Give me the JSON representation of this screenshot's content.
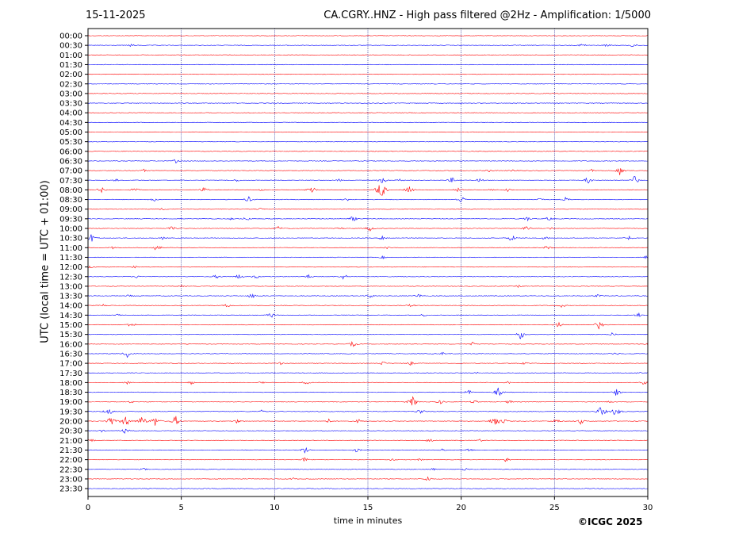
{
  "header": {
    "date": "15-11-2025",
    "title": "CA.CGRY..HNZ - High pass filtered @2Hz - Amplification: 1/5000"
  },
  "footer": {
    "copyright": "©ICGC 2025"
  },
  "chart_data": {
    "type": "line",
    "subtype": "helicorder",
    "xlabel": "time in minutes",
    "ylabel": "UTC (local time = UTC + 01:00)",
    "xlim": [
      0,
      30
    ],
    "xticks": [
      0,
      5,
      10,
      15,
      20,
      25,
      30
    ],
    "grid_x": [
      5,
      10,
      15,
      20,
      25
    ],
    "trace_colors": [
      "#ff0000",
      "#0000ff"
    ],
    "rows": [
      {
        "label": "00:00",
        "events": []
      },
      {
        "label": "00:30",
        "events": [
          [
            2.3,
            2
          ],
          [
            26.5,
            3
          ],
          [
            27.8,
            2
          ],
          [
            29.2,
            3
          ]
        ]
      },
      {
        "label": "01:00",
        "events": []
      },
      {
        "label": "01:30",
        "events": []
      },
      {
        "label": "02:00",
        "events": []
      },
      {
        "label": "02:30",
        "events": []
      },
      {
        "label": "03:00",
        "events": []
      },
      {
        "label": "03:30",
        "events": []
      },
      {
        "label": "04:00",
        "events": []
      },
      {
        "label": "04:30",
        "events": []
      },
      {
        "label": "05:00",
        "events": []
      },
      {
        "label": "05:30",
        "events": []
      },
      {
        "label": "06:00",
        "events": []
      },
      {
        "label": "06:30",
        "events": [
          [
            4.7,
            3
          ]
        ]
      },
      {
        "label": "07:00",
        "events": [
          [
            3.0,
            2
          ],
          [
            21.5,
            2
          ],
          [
            22.8,
            2
          ],
          [
            27.0,
            2
          ],
          [
            28.5,
            6
          ]
        ]
      },
      {
        "label": "07:30",
        "events": [
          [
            1.5,
            2
          ],
          [
            8.0,
            2
          ],
          [
            13.5,
            2
          ],
          [
            15.8,
            5
          ],
          [
            16.7,
            3
          ],
          [
            19.5,
            4
          ],
          [
            21.0,
            3
          ],
          [
            26.8,
            5
          ],
          [
            29.3,
            6
          ]
        ]
      },
      {
        "label": "08:00",
        "events": [
          [
            0.7,
            4
          ],
          [
            2.5,
            3
          ],
          [
            6.2,
            4
          ],
          [
            9.3,
            2
          ],
          [
            12.0,
            7
          ],
          [
            15.7,
            14
          ],
          [
            17.2,
            6
          ],
          [
            19.8,
            3
          ],
          [
            21.6,
            2
          ],
          [
            22.5,
            3
          ]
        ]
      },
      {
        "label": "08:30",
        "events": [
          [
            3.5,
            3
          ],
          [
            8.6,
            4
          ],
          [
            13.9,
            2
          ],
          [
            20.0,
            5
          ],
          [
            24.2,
            3
          ],
          [
            25.6,
            3
          ]
        ]
      },
      {
        "label": "09:00",
        "events": [
          [
            4.0,
            2
          ],
          [
            9.2,
            2
          ]
        ]
      },
      {
        "label": "09:30",
        "events": [
          [
            7.7,
            2
          ],
          [
            8.5,
            3
          ],
          [
            14.2,
            4
          ],
          [
            23.5,
            4
          ],
          [
            24.7,
            3
          ]
        ]
      },
      {
        "label": "10:00",
        "events": [
          [
            4.5,
            3
          ],
          [
            10.2,
            3
          ],
          [
            13.5,
            2
          ],
          [
            15.1,
            4
          ],
          [
            23.5,
            4
          ],
          [
            24.8,
            2
          ]
        ]
      },
      {
        "label": "10:30",
        "events": [
          [
            0.2,
            6
          ],
          [
            4.0,
            2
          ],
          [
            15.8,
            4
          ],
          [
            22.7,
            5
          ],
          [
            24.5,
            3
          ],
          [
            29.0,
            3
          ]
        ]
      },
      {
        "label": "11:00",
        "events": [
          [
            1.3,
            2
          ],
          [
            3.7,
            5
          ],
          [
            16.0,
            2
          ],
          [
            24.6,
            3
          ]
        ]
      },
      {
        "label": "11:30",
        "events": [
          [
            15.8,
            2
          ],
          [
            29.9,
            2
          ]
        ]
      },
      {
        "label": "12:00",
        "events": [
          [
            0.1,
            3
          ],
          [
            2.5,
            2
          ]
        ]
      },
      {
        "label": "12:30",
        "events": [
          [
            2.6,
            2
          ],
          [
            6.9,
            3
          ],
          [
            8.1,
            4
          ],
          [
            9.0,
            3
          ],
          [
            11.8,
            3
          ],
          [
            13.7,
            4
          ]
        ]
      },
      {
        "label": "13:00",
        "events": [
          [
            5.0,
            2
          ],
          [
            23.1,
            2
          ]
        ]
      },
      {
        "label": "13:30",
        "events": [
          [
            2.2,
            2
          ],
          [
            8.8,
            4
          ],
          [
            15.1,
            3
          ],
          [
            17.7,
            3
          ],
          [
            27.3,
            2
          ]
        ]
      },
      {
        "label": "14:00",
        "events": [
          [
            0.8,
            2
          ],
          [
            7.5,
            3
          ],
          [
            17.3,
            3
          ],
          [
            25.4,
            3
          ]
        ]
      },
      {
        "label": "14:30",
        "events": [
          [
            1.6,
            2
          ],
          [
            9.8,
            4
          ],
          [
            18.0,
            2
          ],
          [
            29.5,
            3
          ]
        ]
      },
      {
        "label": "15:00",
        "events": [
          [
            2.3,
            4
          ],
          [
            25.2,
            4
          ],
          [
            27.4,
            6
          ]
        ]
      },
      {
        "label": "15:30",
        "events": [
          [
            23.2,
            7
          ],
          [
            28.1,
            3
          ]
        ]
      },
      {
        "label": "16:00",
        "events": [
          [
            14.2,
            4
          ],
          [
            20.6,
            3
          ],
          [
            30.0,
            2
          ]
        ]
      },
      {
        "label": "16:30",
        "events": [
          [
            2.1,
            5
          ],
          [
            19.0,
            2
          ],
          [
            28.3,
            2
          ]
        ]
      },
      {
        "label": "17:00",
        "events": [
          [
            10.3,
            2
          ],
          [
            15.8,
            3
          ],
          [
            17.3,
            3
          ],
          [
            23.4,
            2
          ]
        ]
      },
      {
        "label": "17:30",
        "events": [
          [
            20.8,
            2
          ],
          [
            29.5,
            2
          ]
        ]
      },
      {
        "label": "18:00",
        "events": [
          [
            2.1,
            2
          ],
          [
            5.5,
            3
          ],
          [
            9.3,
            2
          ],
          [
            11.7,
            3
          ],
          [
            22.5,
            2
          ],
          [
            29.8,
            3
          ]
        ]
      },
      {
        "label": "18:30",
        "events": [
          [
            20.4,
            3
          ],
          [
            22.0,
            6
          ],
          [
            28.3,
            5
          ]
        ]
      },
      {
        "label": "19:00",
        "events": [
          [
            2.3,
            2
          ],
          [
            17.4,
            8
          ],
          [
            18.9,
            3
          ],
          [
            20.7,
            3
          ],
          [
            22.6,
            3
          ],
          [
            28.0,
            2
          ]
        ]
      },
      {
        "label": "19:30",
        "events": [
          [
            1.1,
            6
          ],
          [
            9.3,
            2
          ],
          [
            17.8,
            4
          ],
          [
            27.5,
            8
          ],
          [
            28.3,
            7
          ]
        ]
      },
      {
        "label": "20:00",
        "events": [
          [
            1.2,
            8
          ],
          [
            2.0,
            9
          ],
          [
            2.9,
            8
          ],
          [
            3.6,
            7
          ],
          [
            4.7,
            7
          ],
          [
            8.0,
            3
          ],
          [
            12.9,
            3
          ],
          [
            14.5,
            3
          ],
          [
            21.8,
            9
          ],
          [
            22.3,
            4
          ],
          [
            25.1,
            4
          ],
          [
            26.4,
            4
          ]
        ]
      },
      {
        "label": "20:30",
        "events": [
          [
            0.7,
            2
          ],
          [
            2.0,
            4
          ]
        ]
      },
      {
        "label": "21:00",
        "events": [
          [
            0.2,
            2
          ],
          [
            18.3,
            3
          ],
          [
            21.0,
            2
          ]
        ]
      },
      {
        "label": "21:30",
        "events": [
          [
            11.6,
            5
          ],
          [
            14.4,
            3
          ],
          [
            19.0,
            2
          ],
          [
            20.4,
            3
          ]
        ]
      },
      {
        "label": "22:00",
        "events": [
          [
            11.6,
            3
          ],
          [
            16.3,
            2
          ],
          [
            17.8,
            2
          ],
          [
            22.4,
            4
          ]
        ]
      },
      {
        "label": "22:30",
        "events": [
          [
            3.0,
            2
          ],
          [
            18.5,
            2
          ],
          [
            20.2,
            2
          ]
        ]
      },
      {
        "label": "23:00",
        "events": [
          [
            11.0,
            2
          ],
          [
            18.2,
            4
          ]
        ]
      },
      {
        "label": "23:30",
        "events": []
      }
    ]
  }
}
